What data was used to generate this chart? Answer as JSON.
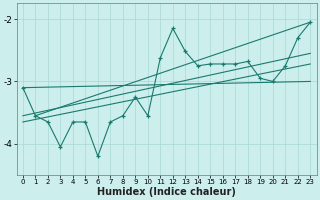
{
  "xlabel": "Humidex (Indice chaleur)",
  "xlim": [
    -0.5,
    23.5
  ],
  "ylim": [
    -4.5,
    -1.75
  ],
  "yticks": [
    -4,
    -3,
    -2
  ],
  "xticks": [
    0,
    1,
    2,
    3,
    4,
    5,
    6,
    7,
    8,
    9,
    10,
    11,
    12,
    13,
    14,
    15,
    16,
    17,
    18,
    19,
    20,
    21,
    22,
    23
  ],
  "bg_color": "#cceeed",
  "grid_color": "#aad8d4",
  "line_color": "#1a7a6e",
  "main_line": {
    "x": [
      0,
      1,
      2,
      3,
      4,
      5,
      6,
      7,
      8,
      9,
      10,
      11,
      12,
      13,
      14,
      15,
      16,
      17,
      18,
      19,
      20,
      21,
      22,
      23
    ],
    "y": [
      -3.1,
      -3.55,
      -3.65,
      -4.05,
      -3.65,
      -3.65,
      -4.2,
      -3.65,
      -3.55,
      -3.25,
      -3.55,
      -2.62,
      -2.15,
      -2.52,
      -2.75,
      -2.72,
      -2.72,
      -2.72,
      -2.68,
      -2.95,
      -3.0,
      -2.75,
      -2.3,
      -2.05
    ]
  },
  "trend_lines": [
    {
      "x": [
        0,
        23
      ],
      "y": [
        -3.55,
        -2.55
      ]
    },
    {
      "x": [
        0,
        23
      ],
      "y": [
        -3.65,
        -2.72
      ]
    },
    {
      "x": [
        0,
        23
      ],
      "y": [
        -3.1,
        -3.0
      ]
    },
    {
      "x": [
        1,
        23
      ],
      "y": [
        -3.55,
        -2.05
      ]
    }
  ]
}
